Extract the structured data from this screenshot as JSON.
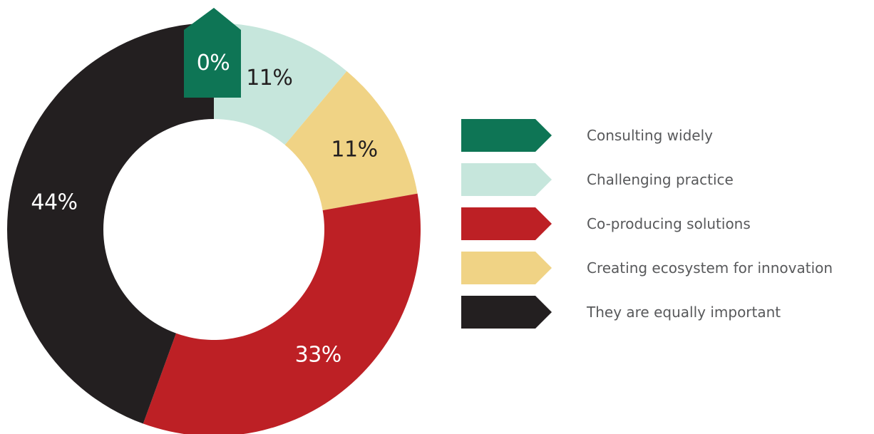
{
  "chart_data": {
    "type": "pie",
    "subtype": "donut",
    "slices": [
      {
        "label": "Consulting widely",
        "value": 0,
        "display": "0%",
        "color": "#0e7555",
        "label_color": "#ffffff"
      },
      {
        "label": "Challenging practice",
        "value": 11,
        "display": "11%",
        "color": "#c6e6dc",
        "label_color": "#231f20"
      },
      {
        "label": "Creating ecosystem for innovation",
        "value": 11,
        "display": "11%",
        "color": "#f0d385",
        "label_color": "#231f20"
      },
      {
        "label": "Co-producing solutions",
        "value": 33,
        "display": "33%",
        "color": "#bd2025",
        "label_color": "#ffffff"
      },
      {
        "label": "They are equally important",
        "value": 44,
        "display": "44%",
        "color": "#231f20",
        "label_color": "#ffffff"
      }
    ],
    "legend": [
      {
        "label": "Consulting widely",
        "color": "#0e7555"
      },
      {
        "label": "Challenging practice",
        "color": "#c6e6dc"
      },
      {
        "label": "Co-producing solutions",
        "color": "#bd2025"
      },
      {
        "label": "Creating ecosystem for innovation",
        "color": "#f0d385"
      },
      {
        "label": "They are equally important",
        "color": "#231f20"
      }
    ],
    "legend_position": "right"
  }
}
